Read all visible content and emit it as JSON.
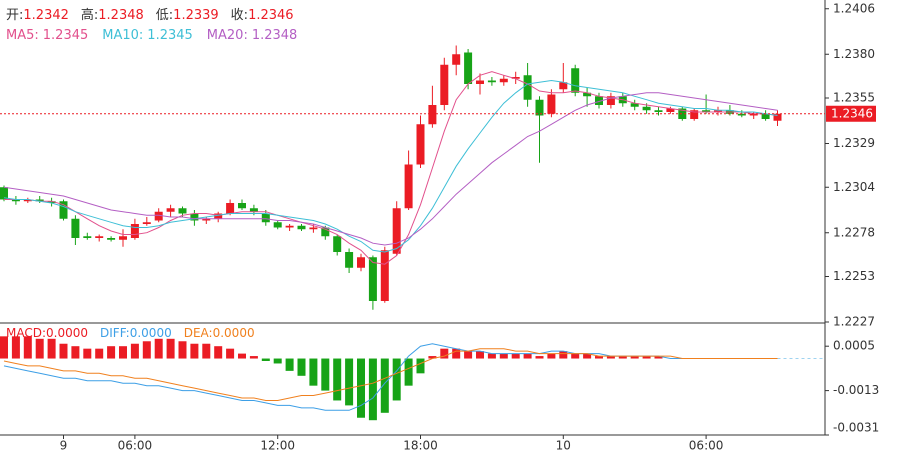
{
  "chart_data": [
    {
      "type": "candlestick",
      "ohlc_labels": [
        "开:",
        "高:",
        "低:",
        "收:"
      ],
      "categories": [
        null,
        null,
        null,
        null,
        null,
        "9",
        null,
        null,
        null,
        null,
        null,
        "06:00",
        null,
        null,
        null,
        null,
        null,
        null,
        null,
        null,
        null,
        null,
        null,
        "12:00",
        null,
        null,
        null,
        null,
        null,
        null,
        null,
        null,
        null,
        null,
        null,
        "18:00",
        null,
        null,
        null,
        null,
        null,
        null,
        null,
        null,
        null,
        null,
        null,
        "10",
        null,
        null,
        null,
        null,
        null,
        null,
        null,
        null,
        null,
        null,
        null,
        "06:00",
        null,
        null,
        null,
        null,
        null,
        null
      ],
      "open": [
        1.2304,
        1.2297,
        1.2296,
        1.2297,
        1.2296,
        1.2296,
        1.2286,
        1.2276,
        1.2275,
        1.2275,
        1.2274,
        1.2275,
        1.2283,
        1.2285,
        1.229,
        1.2292,
        1.2289,
        1.2285,
        1.2286,
        1.2289,
        1.2295,
        1.2292,
        1.2289,
        1.2284,
        1.2281,
        1.2282,
        1.228,
        1.2281,
        1.2276,
        1.2267,
        1.2258,
        1.2264,
        1.2239,
        1.2266,
        1.2292,
        1.2317,
        1.234,
        1.2351,
        1.2374,
        1.2381,
        1.2363,
        1.2365,
        1.2364,
        1.2366,
        1.2368,
        1.2354,
        1.2346,
        1.236,
        1.2372,
        1.2358,
        1.2356,
        1.2351,
        1.2356,
        1.2352,
        1.235,
        1.2348,
        1.2347,
        1.2349,
        1.2343,
        1.2348,
        1.2347,
        1.2348,
        1.2346,
        1.2345,
        1.2346,
        1.2342
      ],
      "high": [
        1.2305,
        1.2299,
        1.2298,
        1.2299,
        1.2298,
        1.2297,
        1.2288,
        1.2278,
        1.2277,
        1.2276,
        1.228,
        1.2286,
        1.2287,
        1.2292,
        1.2294,
        1.2293,
        1.2291,
        1.2287,
        1.229,
        1.2297,
        1.2297,
        1.2294,
        1.2291,
        1.2285,
        1.2283,
        1.2283,
        1.2283,
        1.2282,
        1.2277,
        1.2269,
        1.2266,
        1.2265,
        1.227,
        1.2296,
        1.2325,
        1.2345,
        1.2362,
        1.2378,
        1.2385,
        1.2383,
        1.2369,
        1.2367,
        1.2368,
        1.237,
        1.2375,
        1.2356,
        1.236,
        1.2375,
        1.2374,
        1.2361,
        1.2358,
        1.2358,
        1.2358,
        1.2354,
        1.2352,
        1.235,
        1.235,
        1.235,
        1.2349,
        1.2357,
        1.235,
        1.2351,
        1.2348,
        1.2347,
        1.2348,
        1.2348
      ],
      "low": [
        1.2296,
        1.2294,
        1.2295,
        1.2295,
        1.2293,
        1.2285,
        1.2271,
        1.2274,
        1.2273,
        1.2273,
        1.227,
        1.2274,
        1.2282,
        1.2284,
        1.2287,
        1.2287,
        1.2282,
        1.2283,
        1.2284,
        1.2288,
        1.2291,
        1.2288,
        1.2282,
        1.228,
        1.2279,
        1.2279,
        1.2278,
        1.2274,
        1.2265,
        1.2255,
        1.2256,
        1.2234,
        1.2238,
        1.2265,
        1.2291,
        1.2315,
        1.2338,
        1.2348,
        1.2368,
        1.236,
        1.2357,
        1.2362,
        1.2362,
        1.2363,
        1.235,
        1.2318,
        1.2344,
        1.2358,
        1.2356,
        1.235,
        1.2349,
        1.2349,
        1.235,
        1.2348,
        1.2346,
        1.2345,
        1.2346,
        1.2342,
        1.2342,
        1.2346,
        1.2345,
        1.2345,
        1.2344,
        1.2343,
        1.2342,
        1.2339
      ],
      "close": [
        1.2297,
        1.2296,
        1.2297,
        1.2296,
        1.2295,
        1.2286,
        1.2275,
        1.2275,
        1.2276,
        1.2274,
        1.2276,
        1.2283,
        1.2284,
        1.229,
        1.2292,
        1.2289,
        1.2285,
        1.2286,
        1.2289,
        1.2295,
        1.2292,
        1.229,
        1.2284,
        1.2281,
        1.2282,
        1.228,
        1.2281,
        1.2276,
        1.2267,
        1.2258,
        1.2264,
        1.2239,
        1.2268,
        1.2292,
        1.2317,
        1.234,
        1.2351,
        1.2374,
        1.238,
        1.2363,
        1.2365,
        1.2364,
        1.2366,
        1.2367,
        1.2354,
        1.2345,
        1.2357,
        1.2364,
        1.2358,
        1.2356,
        1.2351,
        1.2356,
        1.2352,
        1.235,
        1.2348,
        1.2347,
        1.2349,
        1.2343,
        1.2348,
        1.2347,
        1.2348,
        1.2346,
        1.2345,
        1.2346,
        1.2343,
        1.2346
      ],
      "up_color": "#eb1c24",
      "down_color": "#17a317",
      "series": [
        {
          "name": "MA5:",
          "color": "#e2508c",
          "values": [
            1.2297,
            1.2297,
            1.2297,
            1.2296,
            1.2296,
            1.2294,
            1.229,
            1.2286,
            1.2282,
            1.2279,
            1.2277,
            1.2277,
            1.2278,
            1.2281,
            1.2285,
            1.2288,
            1.2289,
            1.2289,
            1.2288,
            1.2289,
            1.229,
            1.229,
            1.229,
            1.2288,
            1.2286,
            1.2284,
            1.2282,
            1.228,
            1.2277,
            1.2272,
            1.2268,
            1.2261,
            1.226,
            1.2265,
            1.2277,
            1.2294,
            1.2315,
            1.2336,
            1.2354,
            1.2363,
            1.2368,
            1.237,
            1.2368,
            1.2366,
            1.2363,
            1.2359,
            1.2358,
            1.2358,
            1.2359,
            1.2358,
            1.2356,
            1.2355,
            1.2354,
            1.2352,
            1.2351,
            1.235,
            1.2349,
            1.2348,
            1.2347,
            1.2347,
            1.2347,
            1.2347,
            1.2347,
            1.2346,
            1.2346,
            1.2345
          ]
        },
        {
          "name": "MA10:",
          "color": "#3ebfd6",
          "values": [
            1.2298,
            1.2297,
            1.2297,
            1.2296,
            1.2295,
            1.2293,
            1.229,
            1.2288,
            1.2286,
            1.2284,
            1.2282,
            1.2281,
            1.2281,
            1.2282,
            1.2284,
            1.2285,
            1.2286,
            1.2287,
            1.2288,
            1.2289,
            1.2289,
            1.2289,
            1.2289,
            1.2288,
            1.2287,
            1.2286,
            1.2285,
            1.2283,
            1.228,
            1.2276,
            1.2273,
            1.2268,
            1.2267,
            1.2269,
            1.2274,
            1.2282,
            1.2292,
            1.2304,
            1.2316,
            1.2326,
            1.2335,
            1.2344,
            1.2352,
            1.2358,
            1.2363,
            1.2364,
            1.2365,
            1.2364,
            1.2362,
            1.2361,
            1.236,
            1.2359,
            1.2358,
            1.2356,
            1.2354,
            1.2352,
            1.2351,
            1.235,
            1.2349,
            1.2349,
            1.2348,
            1.2348,
            1.2347,
            1.2347,
            1.2346,
            1.2345
          ]
        },
        {
          "name": "MA20:",
          "color": "#b45fc4",
          "values": [
            1.2304,
            1.2303,
            1.2302,
            1.2301,
            1.23,
            1.2299,
            1.2297,
            1.2295,
            1.2293,
            1.2291,
            1.229,
            1.2289,
            1.2288,
            1.2288,
            1.2287,
            1.2287,
            1.2286,
            1.2286,
            1.2286,
            1.2286,
            1.2286,
            1.2286,
            1.2286,
            1.2285,
            1.2285,
            1.2284,
            1.2283,
            1.2281,
            1.2279,
            1.2277,
            1.2275,
            1.2272,
            1.2271,
            1.2272,
            1.2275,
            1.228,
            1.2286,
            1.2293,
            1.23,
            1.2306,
            1.2312,
            1.2318,
            1.2323,
            1.2328,
            1.2333,
            1.2336,
            1.234,
            1.2344,
            1.2348,
            1.2351,
            1.2353,
            1.2355,
            1.2356,
            1.2357,
            1.2358,
            1.2358,
            1.2357,
            1.2356,
            1.2355,
            1.2354,
            1.2353,
            1.2352,
            1.2351,
            1.235,
            1.2349,
            1.2348
          ]
        }
      ],
      "ylim": [
        1.2227,
        1.2411
      ],
      "yticks": [
        1.2406,
        {
          "value": 1.238,
          "label": "1.2380"
        },
        1.2355,
        1.2329,
        1.2304,
        1.2278,
        1.2253,
        1.2227
      ]
    },
    {
      "type": "macd",
      "legend_values": [
        "0.0000",
        "0.0000",
        "0.0000"
      ],
      "series": [
        {
          "name": "MACD:",
          "color": "#eb1c24",
          "negative_color": "#17a317",
          "values": [
            0.0009,
            0.0009,
            0.0009,
            0.0008,
            0.0008,
            0.0006,
            0.0005,
            0.0004,
            0.0004,
            0.0005,
            0.0005,
            0.0006,
            0.0007,
            0.0008,
            0.0008,
            0.0007,
            0.0006,
            0.0006,
            0.0005,
            0.0004,
            0.0002,
            0.0001,
            -0.0001,
            -0.0002,
            -0.0005,
            -0.0007,
            -0.0011,
            -0.0013,
            -0.0017,
            -0.0019,
            -0.0024,
            -0.0025,
            -0.0022,
            -0.0017,
            -0.0011,
            -0.0006,
            0.0001,
            0.0004,
            0.0004,
            0.0003,
            0.0003,
            0.0002,
            0.0002,
            0.0002,
            0.0002,
            0.0001,
            0.0002,
            0.0003,
            0.0002,
            0.0002,
            0.0001,
            0.0001,
            0.0001,
            0.0001,
            0.0001,
            0.0001,
            0,
            0,
            0,
            0,
            0,
            0,
            0,
            0,
            0,
            0
          ]
        },
        {
          "name": "DIFF:",
          "color": "#3d9fe6",
          "values": [
            -0.0003,
            -0.0004,
            -0.0005,
            -0.0006,
            -0.0007,
            -0.0008,
            -0.0008,
            -0.0009,
            -0.0009,
            -0.0009,
            -0.001,
            -0.001,
            -0.0011,
            -0.0011,
            -0.0012,
            -0.0013,
            -0.0013,
            -0.0014,
            -0.0015,
            -0.0016,
            -0.0017,
            -0.0017,
            -0.0018,
            -0.0019,
            -0.0019,
            -0.002,
            -0.002,
            -0.0021,
            -0.0021,
            -0.0021,
            -0.0019,
            -0.0016,
            -0.001,
            -0.0005,
            0.0001,
            0.0005,
            0.0006,
            0.0005,
            0.0004,
            0.0003,
            0.0003,
            0.0002,
            0.0002,
            0.0002,
            0.0002,
            0.0002,
            0.0003,
            0.0003,
            0.0002,
            0.0002,
            0.0002,
            0.0001,
            0.0001,
            0.0001,
            0.0001,
            0.0001,
            0,
            0,
            0,
            0,
            0,
            0,
            0,
            0,
            0,
            0
          ]
        },
        {
          "name": "DEA:",
          "color": "#f0801e",
          "values": [
            -0.0001,
            -0.0002,
            -0.0003,
            -0.0003,
            -0.0004,
            -0.0005,
            -0.0005,
            -0.0006,
            -0.0006,
            -0.0007,
            -0.0007,
            -0.0008,
            -0.0008,
            -0.0009,
            -0.001,
            -0.0011,
            -0.0012,
            -0.0013,
            -0.0014,
            -0.0015,
            -0.0016,
            -0.0016,
            -0.0017,
            -0.0017,
            -0.0016,
            -0.0015,
            -0.0015,
            -0.0014,
            -0.0013,
            -0.0012,
            -0.0011,
            -0.001,
            -0.0008,
            -0.0006,
            -0.0004,
            -0.0002,
            0,
            0.0001,
            0.0003,
            0.0003,
            0.0004,
            0.0004,
            0.0004,
            0.0003,
            0.0003,
            0.0002,
            0.0002,
            0.0002,
            0.0002,
            0.0002,
            0.0001,
            0.0001,
            0.0001,
            0.0001,
            0.0001,
            0.0001,
            0.0001,
            0,
            0,
            0,
            0,
            0,
            0,
            0,
            0,
            0
          ]
        }
      ],
      "ylim": [
        -0.0031,
        0.0014
      ],
      "yticks": [
        0.0005,
        -0.0013,
        -0.0031
      ]
    }
  ]
}
